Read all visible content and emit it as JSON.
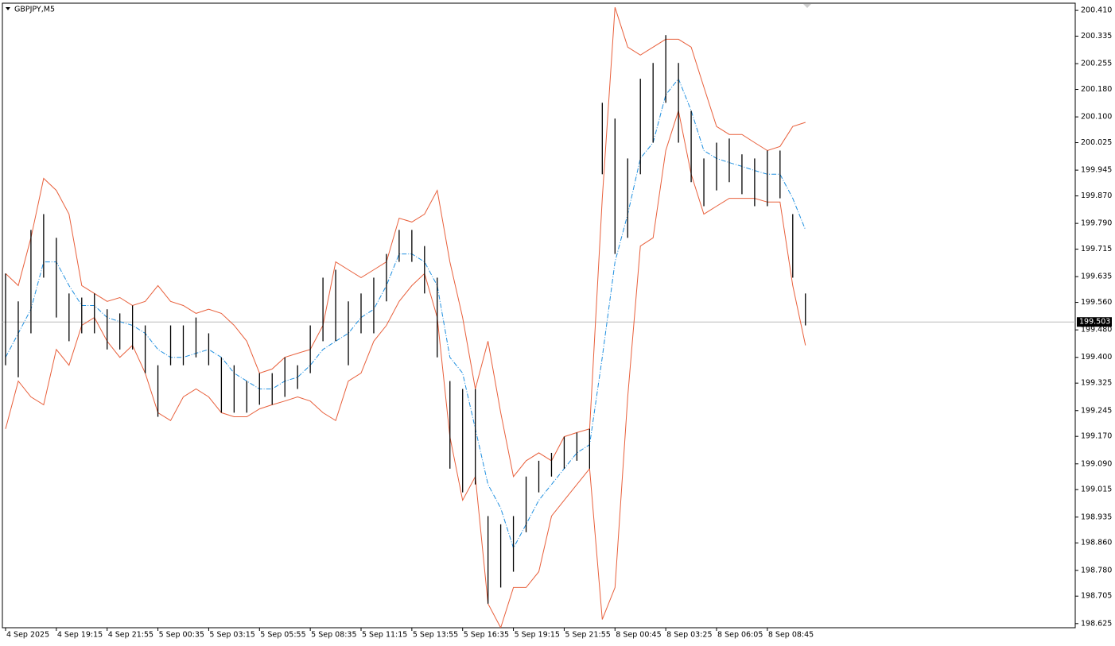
{
  "chart_data": {
    "type": "ohlc",
    "title": "GBPJPY,M5",
    "x": [
      0,
      8,
      16,
      24,
      32,
      40,
      48,
      56,
      64,
      72,
      80,
      88,
      96,
      104,
      112,
      120,
      128,
      136,
      144,
      152,
      160,
      168,
      176,
      184,
      192,
      200,
      208,
      216,
      224,
      232,
      240,
      248,
      256,
      264,
      272,
      280,
      288,
      296,
      304,
      312,
      320,
      328,
      336,
      344,
      352,
      360,
      368,
      376,
      384,
      392,
      400,
      408,
      416,
      424,
      432,
      440,
      448,
      456,
      464,
      472,
      480,
      488,
      496,
      504
    ],
    "high": [
      199.644,
      199.563,
      199.771,
      199.817,
      199.748,
      199.586,
      199.574,
      199.586,
      199.54,
      199.528,
      199.551,
      199.493,
      199.377,
      199.493,
      199.493,
      199.516,
      199.47,
      199.4,
      199.377,
      199.331,
      199.354,
      199.354,
      199.4,
      199.377,
      199.493,
      199.632,
      199.655,
      199.563,
      199.586,
      199.632,
      199.701,
      199.771,
      199.771,
      199.724,
      199.632,
      199.331,
      199.308,
      199.308,
      198.938,
      198.914,
      198.938,
      199.053,
      199.099,
      199.122,
      199.169,
      199.181,
      199.192,
      200.141,
      200.095,
      199.979,
      200.211,
      200.257,
      200.338,
      200.257,
      200.118,
      199.979,
      200.025,
      200.037,
      199.991,
      199.979,
      200.002,
      200.002,
      199.817,
      199.586
    ],
    "low": [
      199.377,
      199.342,
      199.47,
      199.632,
      199.516,
      199.447,
      199.47,
      199.47,
      199.423,
      199.423,
      199.423,
      199.354,
      199.227,
      199.377,
      199.377,
      199.4,
      199.377,
      199.239,
      199.239,
      199.239,
      199.262,
      199.262,
      199.285,
      199.308,
      199.354,
      199.447,
      199.447,
      199.377,
      199.47,
      199.47,
      199.563,
      199.678,
      199.678,
      199.586,
      199.4,
      199.076,
      199.007,
      199.03,
      198.683,
      198.73,
      198.776,
      198.891,
      199.007,
      199.053,
      199.076,
      199.099,
      199.076,
      199.933,
      199.701,
      199.748,
      199.933,
      200.025,
      200.141,
      200.025,
      199.91,
      199.84,
      199.886,
      199.91,
      199.875,
      199.84,
      199.84,
      199.863,
      199.632,
      199.493
    ],
    "upper": [
      199.644,
      199.609,
      199.748,
      199.921,
      199.886,
      199.817,
      199.609,
      199.586,
      199.563,
      199.574,
      199.551,
      199.563,
      199.609,
      199.563,
      199.551,
      199.528,
      199.54,
      199.528,
      199.493,
      199.447,
      199.354,
      199.366,
      199.4,
      199.412,
      199.423,
      199.493,
      199.678,
      199.655,
      199.632,
      199.655,
      199.678,
      199.805,
      199.794,
      199.817,
      199.886,
      199.678,
      199.516,
      199.308,
      199.447,
      199.239,
      199.053,
      199.099,
      199.122,
      199.099,
      199.169,
      199.181,
      199.192,
      199.863,
      200.419,
      200.303,
      200.28,
      200.303,
      200.326,
      200.326,
      200.303,
      200.187,
      200.072,
      200.049,
      200.049,
      200.025,
      200.002,
      200.014,
      200.072,
      200.084
    ],
    "middle": [
      199.4,
      199.47,
      199.54,
      199.678,
      199.678,
      199.609,
      199.551,
      199.551,
      199.516,
      199.504,
      199.493,
      199.47,
      199.423,
      199.4,
      199.4,
      199.412,
      199.423,
      199.4,
      199.354,
      199.331,
      199.308,
      199.308,
      199.331,
      199.342,
      199.377,
      199.423,
      199.447,
      199.47,
      199.516,
      199.54,
      199.609,
      199.701,
      199.701,
      199.678,
      199.609,
      199.4,
      199.354,
      199.192,
      199.03,
      198.961,
      198.845,
      198.914,
      198.984,
      199.03,
      199.076,
      199.122,
      199.146,
      199.4,
      199.678,
      199.817,
      199.979,
      200.025,
      200.164,
      200.211,
      200.118,
      200.002,
      199.979,
      199.967,
      199.956,
      199.944,
      199.933,
      199.933,
      199.863,
      199.771
    ],
    "lower": [
      199.192,
      199.331,
      199.285,
      199.262,
      199.423,
      199.377,
      199.493,
      199.516,
      199.447,
      199.4,
      199.435,
      199.354,
      199.239,
      199.216,
      199.285,
      199.308,
      199.285,
      199.239,
      199.227,
      199.227,
      199.25,
      199.262,
      199.273,
      199.285,
      199.273,
      199.239,
      199.216,
      199.331,
      199.354,
      199.447,
      199.493,
      199.563,
      199.609,
      199.644,
      199.516,
      199.169,
      198.984,
      199.053,
      198.683,
      198.613,
      198.73,
      198.73,
      198.776,
      198.938,
      198.984,
      199.03,
      199.076,
      198.637,
      198.73,
      199.285,
      199.724,
      199.748,
      200.002,
      200.118,
      199.933,
      199.817,
      199.84,
      199.863,
      199.863,
      199.863,
      199.852,
      199.852,
      199.609,
      199.435
    ],
    "bar_color": "#000000",
    "band_color": "#e8603c",
    "middle_color": "#1e8fe0",
    "last_price": 199.503,
    "xlim": [
      -2,
      674
    ],
    "xticks": [
      {
        "value": 0,
        "label": "4 Sep 2025"
      },
      {
        "value": 32,
        "label": "4 Sep 19:15"
      },
      {
        "value": 64,
        "label": "4 Sep 21:55"
      },
      {
        "value": 96,
        "label": "5 Sep 00:35"
      },
      {
        "value": 128,
        "label": "5 Sep 03:15"
      },
      {
        "value": 160,
        "label": "5 Sep 05:55"
      },
      {
        "value": 192,
        "label": "5 Sep 08:35"
      },
      {
        "value": 224,
        "label": "5 Sep 11:15"
      },
      {
        "value": 256,
        "label": "5 Sep 13:55"
      },
      {
        "value": 288,
        "label": "5 Sep 16:35"
      },
      {
        "value": 320,
        "label": "5 Sep 19:15"
      },
      {
        "value": 352,
        "label": "5 Sep 21:55"
      },
      {
        "value": 384,
        "label": "8 Sep 00:45"
      },
      {
        "value": 416,
        "label": "8 Sep 03:25"
      },
      {
        "value": 448,
        "label": "8 Sep 06:05"
      },
      {
        "value": 480,
        "label": "8 Sep 08:45"
      }
    ],
    "ylim": [
      198.613,
      200.431
    ],
    "yticks": [
      {
        "value": 200.41,
        "label": "200.410"
      },
      200.335,
      200.255,
      {
        "value": 200.18,
        "label": "200.180"
      },
      {
        "value": 200.1,
        "label": "200.100"
      },
      200.025,
      199.945,
      {
        "value": 199.87,
        "label": "199.870"
      },
      {
        "value": 199.79,
        "label": "199.790"
      },
      199.715,
      199.635,
      {
        "value": 199.56,
        "label": "199.560"
      },
      {
        "value": 199.48,
        "label": "199.480"
      },
      {
        "value": 199.4,
        "label": "199.400"
      },
      199.325,
      199.245,
      {
        "value": 199.17,
        "label": "199.170"
      },
      {
        "value": 199.09,
        "label": "199.090"
      },
      199.015,
      198.935,
      {
        "value": 198.86,
        "label": "198.860"
      },
      {
        "value": 198.78,
        "label": "198.780"
      },
      198.705,
      198.625
    ]
  }
}
